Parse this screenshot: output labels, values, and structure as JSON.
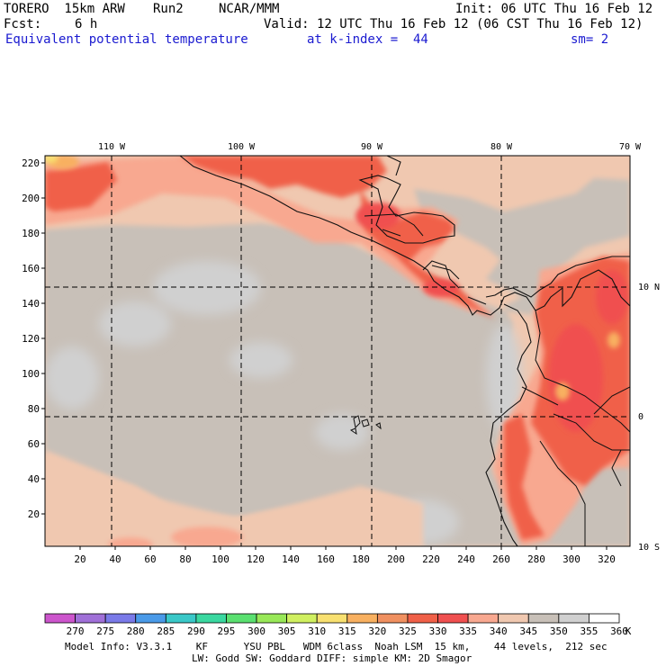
{
  "header": {
    "model": "TORERO  15km ARW",
    "run": "Run2",
    "org": "NCAR/MMM",
    "init": "Init: 06 UTC Thu 16 Feb 12",
    "fcst_label": "Fcst:",
    "fcst_value": "6 h",
    "valid": "Valid: 12 UTC Thu 16 Feb 12 (06 CST Thu 16 Feb 12)",
    "field": "Equivalent potential temperature",
    "level": "at k-index =  44",
    "smoothing": "sm= 2"
  },
  "map": {
    "lon_labels": [
      "110 W",
      "100 W",
      "90 W",
      "80 W",
      "70 W"
    ],
    "lat_labels": [
      "10 N",
      "0",
      "10 S"
    ],
    "y_ticks": [
      "20",
      "40",
      "60",
      "80",
      "100",
      "120",
      "140",
      "160",
      "180",
      "200",
      "220"
    ],
    "x_ticks": [
      "20",
      "40",
      "60",
      "80",
      "100",
      "120",
      "140",
      "160",
      "180",
      "200",
      "220",
      "240",
      "260",
      "280",
      "300",
      "320"
    ]
  },
  "colorbar": {
    "labels": [
      "270",
      "275",
      "280",
      "285",
      "290",
      "295",
      "300",
      "305",
      "310",
      "315",
      "320",
      "325",
      "330",
      "335",
      "340",
      "345",
      "350",
      "355",
      "360"
    ],
    "unit": "K",
    "colors": [
      "#cc55cc",
      "#a070d8",
      "#7a7ae8",
      "#4a9ae8",
      "#3ac8c8",
      "#3ad8a0",
      "#5ae070",
      "#98e858",
      "#d0f060",
      "#f8e070",
      "#f8b060",
      "#f09060",
      "#f06048",
      "#f05050",
      "#f8a890",
      "#f0c8b0",
      "#c8c0b8",
      "#d0d0d0",
      "#ffffff"
    ]
  },
  "footer": {
    "line1": "Model Info: V3.3.1    KF      YSU PBL   WDM 6class  Noah LSM  15 km,    44 levels,  212 sec",
    "line2": "LW: Godd SW: Goddard DIFF: simple KM: 2D Smagor"
  }
}
